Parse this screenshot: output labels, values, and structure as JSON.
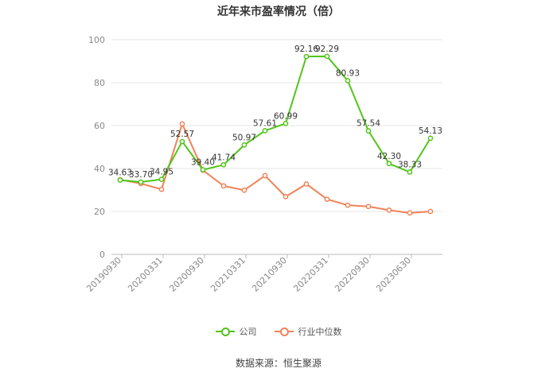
{
  "colors": {
    "company": "#52c41a",
    "industry": "#f08359",
    "grid": "#e6e6e6",
    "axis_text": "#888888"
  },
  "chart_data": {
    "type": "line",
    "title": "近年来市盈率情况（倍）",
    "ylim": [
      0,
      100
    ],
    "yticks": [
      0,
      20,
      40,
      60,
      80,
      100
    ],
    "grid": true,
    "legend_position": "bottom-center",
    "x_tick_labels": [
      "20190930",
      "20200331",
      "20200930",
      "20210331",
      "20210930",
      "20220331",
      "20220930",
      "20230630"
    ],
    "series": [
      {
        "name": "公司",
        "values": [
          34.63,
          33.7,
          34.95,
          52.57,
          39.4,
          41.74,
          50.97,
          57.61,
          60.99,
          92.16,
          92.29,
          80.93,
          57.54,
          42.3,
          38.33,
          54.13
        ],
        "labels": [
          "34.63",
          "33.70",
          "34.95",
          "52.57",
          "39.40",
          "41.74",
          "50.97",
          "57.61",
          "60.99",
          "92.16",
          "92.29",
          "80.93",
          "57.54",
          "42.30",
          "38.33",
          "54.13"
        ]
      },
      {
        "name": "行业中位数",
        "values": [
          34.8,
          33.0,
          30.3,
          60.8,
          39.2,
          31.9,
          29.9,
          36.7,
          26.9,
          32.8,
          25.7,
          22.9,
          22.3,
          20.6,
          19.3,
          20.0
        ]
      }
    ]
  },
  "source": "数据来源：恒生聚源"
}
